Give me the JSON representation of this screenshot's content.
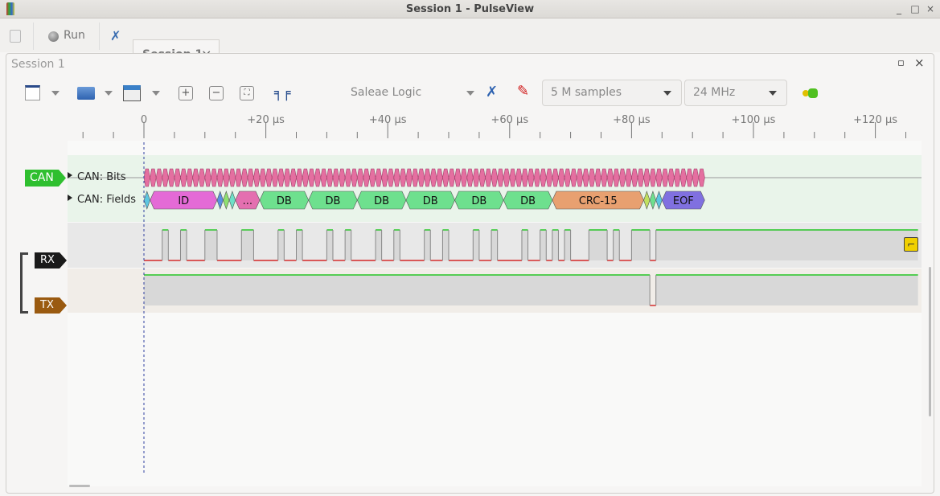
{
  "window": {
    "title": "Session 1 - PulseView",
    "controls": [
      "_",
      "□",
      "×"
    ]
  },
  "tabs": {
    "run_label": "Run",
    "session_tab": "Session 1",
    "close": "×"
  },
  "session": {
    "title": "Session 1",
    "controls": [
      "▫",
      "×"
    ]
  },
  "toolbar": {
    "device": "Saleae Logic",
    "samples": "5 M samples",
    "samplerate": "24 MHz"
  },
  "ruler": {
    "ticks": [
      "0",
      "+20 µs",
      "+40 µs",
      "+60 µs",
      "+80 µs",
      "+100 µs",
      "+120 µs"
    ]
  },
  "traces": {
    "decoder_tag": "CAN",
    "bits_label": "CAN: Bits",
    "fields_label": "CAN: Fields",
    "rx_label": "RX",
    "tx_label": "TX",
    "colors": {
      "can": "#2fbf2f",
      "rx": "#1a1a1a",
      "tx": "#9a5a10",
      "high": "#00c000",
      "low": "#d00000",
      "bits": "#e46fa0"
    }
  },
  "chart_data": {
    "type": "timing",
    "time_unit": "µs",
    "bits": {
      "start": 0,
      "end": 92,
      "period": 1
    },
    "fields": [
      {
        "label": "",
        "start": 0,
        "end": 1,
        "color": "#5cc6e0"
      },
      {
        "label": "ID",
        "start": 1,
        "end": 12,
        "color": "#e46ad6"
      },
      {
        "label": "",
        "start": 12,
        "end": 13,
        "color": "#5a8fe0"
      },
      {
        "label": "",
        "start": 13,
        "end": 14,
        "color": "#8ee070"
      },
      {
        "label": "",
        "start": 14,
        "end": 15,
        "color": "#6ee0c8"
      },
      {
        "label": "...",
        "start": 15,
        "end": 19,
        "color": "#e46fb0"
      },
      {
        "label": "DB",
        "start": 19,
        "end": 27,
        "color": "#6ee08e"
      },
      {
        "label": "DB",
        "start": 27,
        "end": 35,
        "color": "#6ee08e"
      },
      {
        "label": "DB",
        "start": 35,
        "end": 43,
        "color": "#6ee08e"
      },
      {
        "label": "DB",
        "start": 43,
        "end": 51,
        "color": "#6ee08e"
      },
      {
        "label": "DB",
        "start": 51,
        "end": 59,
        "color": "#6ee08e"
      },
      {
        "label": "DB",
        "start": 59,
        "end": 67,
        "color": "#6ee08e"
      },
      {
        "label": "CRC-15",
        "start": 67,
        "end": 82,
        "color": "#e8a070"
      },
      {
        "label": "",
        "start": 82,
        "end": 83,
        "color": "#c0e060"
      },
      {
        "label": "",
        "start": 83,
        "end": 84,
        "color": "#6ee08e"
      },
      {
        "label": "",
        "start": 84,
        "end": 85,
        "color": "#5cc6e0"
      },
      {
        "label": "EOF",
        "start": 85,
        "end": 92,
        "color": "#8070e0"
      }
    ],
    "rx_high_intervals": [
      [
        3,
        4
      ],
      [
        6,
        7
      ],
      [
        10,
        12
      ],
      [
        16,
        18
      ],
      [
        22,
        23
      ],
      [
        25,
        26
      ],
      [
        30,
        31
      ],
      [
        33,
        34
      ],
      [
        38,
        39
      ],
      [
        41,
        42
      ],
      [
        46,
        47
      ],
      [
        49,
        50
      ],
      [
        54,
        55
      ],
      [
        57,
        58
      ],
      [
        62,
        63
      ],
      [
        65,
        66
      ],
      [
        67,
        68
      ],
      [
        69,
        70
      ],
      [
        73,
        76
      ],
      [
        77,
        78
      ],
      [
        80,
        83
      ],
      [
        84,
        140
      ]
    ],
    "tx_low_intervals": [
      [
        83,
        84
      ]
    ],
    "xlim": [
      -10,
      127
    ]
  }
}
